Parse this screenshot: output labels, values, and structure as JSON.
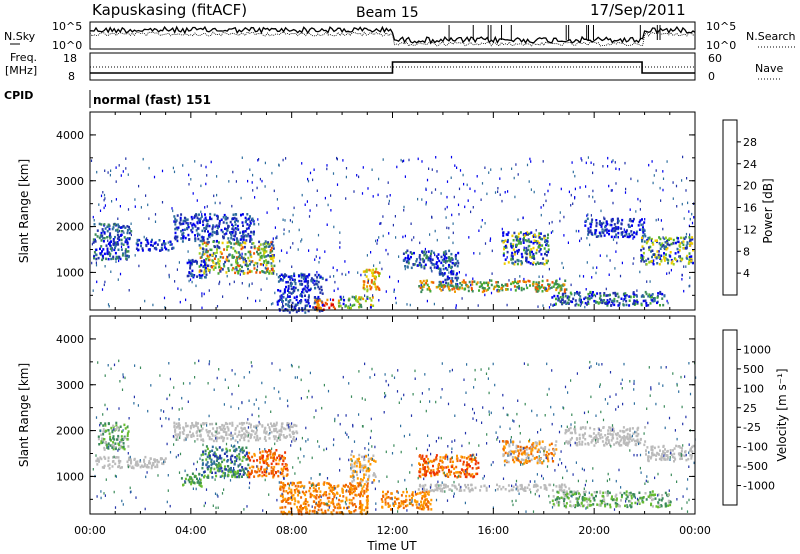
{
  "header": {
    "station": "Kapuskasing (fitACF)",
    "beam": "Beam 15",
    "date": "17/Sep/2011"
  },
  "noise_panel": {
    "left_label": "N.Sky",
    "right_label": "N.Search",
    "y_ticks_left": [
      "10^5",
      "10^0"
    ],
    "y_ticks_right": [
      "10^5",
      "10^0"
    ]
  },
  "freq_panel": {
    "left_label_1": "Freq.",
    "left_label_2": "[MHz]",
    "right_label": "Nave",
    "left_ticks": [
      "18",
      "8"
    ],
    "right_ticks": [
      "60",
      "0"
    ]
  },
  "cpid": {
    "label": "CPID",
    "value": "normal (fast) 151"
  },
  "x_axis": {
    "label": "Time UT",
    "ticks": [
      "00:00",
      "04:00",
      "08:00",
      "12:00",
      "16:00",
      "20:00",
      "00:00"
    ]
  },
  "chart_data": [
    {
      "type": "heatmap",
      "title": "Power",
      "ylabel": "Slant Range [km]",
      "yticks": [
        "1000",
        "2000",
        "3000",
        "4000"
      ],
      "colorbar_label": "Power [dB]",
      "colorbar_ticks": [
        "28",
        "24",
        "20",
        "16",
        "12",
        "8",
        "4"
      ],
      "colors": [
        "#0000ee",
        "#2233aa",
        "#2e6e9e",
        "#3a8a5a",
        "#44aa33",
        "#99cc22",
        "#eecc00",
        "#ee9900",
        "#ee5500",
        "#dd0000"
      ],
      "ylim": [
        180,
        4500
      ],
      "x_range_hours": [
        0,
        24
      ],
      "patches": [
        {
          "t0": 0.1,
          "t1": 1.6,
          "r0": 1300,
          "r1": 2100,
          "c": [
            0,
            1,
            2,
            3
          ]
        },
        {
          "t0": 1.8,
          "t1": 3.3,
          "r0": 1500,
          "r1": 1750,
          "c": [
            0,
            1,
            2
          ]
        },
        {
          "t0": 3.3,
          "t1": 6.5,
          "r0": 1700,
          "r1": 2300,
          "c": [
            0,
            1,
            2
          ]
        },
        {
          "t0": 4.3,
          "t1": 7.3,
          "r0": 1000,
          "r1": 1700,
          "c": [
            1,
            2,
            3,
            4,
            5,
            6,
            8
          ]
        },
        {
          "t0": 3.8,
          "t1": 4.6,
          "r0": 900,
          "r1": 1300,
          "c": [
            0,
            1,
            2
          ]
        },
        {
          "t0": 7.4,
          "t1": 9.2,
          "r0": 150,
          "r1": 1000,
          "c": [
            0,
            1,
            2
          ]
        },
        {
          "t0": 8.9,
          "t1": 9.7,
          "r0": 200,
          "r1": 450,
          "c": [
            7,
            8,
            9
          ]
        },
        {
          "t0": 9.8,
          "t1": 11.2,
          "r0": 250,
          "r1": 500,
          "c": [
            0,
            3,
            4,
            5,
            7
          ]
        },
        {
          "t0": 10.8,
          "t1": 11.5,
          "r0": 600,
          "r1": 1100,
          "c": [
            5,
            6,
            7,
            8
          ]
        },
        {
          "t0": 12.4,
          "t1": 14.6,
          "r0": 1100,
          "r1": 1500,
          "c": [
            0,
            1,
            2,
            3
          ]
        },
        {
          "t0": 13.8,
          "t1": 14.6,
          "r0": 700,
          "r1": 1100,
          "c": [
            0,
            1,
            2
          ]
        },
        {
          "t0": 16.3,
          "t1": 18.2,
          "r0": 1200,
          "r1": 1900,
          "c": [
            0,
            1,
            2,
            3,
            4,
            6
          ]
        },
        {
          "t0": 19.6,
          "t1": 22.0,
          "r0": 1800,
          "r1": 2200,
          "c": [
            0,
            1,
            2
          ]
        },
        {
          "t0": 21.8,
          "t1": 23.9,
          "r0": 1200,
          "r1": 1800,
          "c": [
            0,
            1,
            2,
            4,
            5,
            6
          ]
        },
        {
          "t0": 18.3,
          "t1": 22.8,
          "r0": 300,
          "r1": 600,
          "c": [
            0,
            1,
            2,
            3,
            4
          ]
        },
        {
          "t0": 13.0,
          "t1": 19.0,
          "r0": 600,
          "r1": 850,
          "c": [
            3,
            4,
            7,
            8
          ]
        }
      ]
    },
    {
      "type": "heatmap",
      "title": "Velocity",
      "ylabel": "Slant Range [km]",
      "yticks": [
        "1000",
        "2000",
        "3000",
        "4000"
      ],
      "colorbar_label": "Velocity [m s⁻¹]",
      "colorbar_ticks": [
        "1000",
        "500",
        "100",
        "25",
        "-25",
        "-100",
        "-500",
        "-1000"
      ],
      "colors": [
        "#2233aa",
        "#2e6e9e",
        "#3a8a5a",
        "#66bb33",
        "#bbbbbb",
        "#ff9900",
        "#ee6600",
        "#ee3300",
        "#dd0000"
      ],
      "ylim": [
        180,
        4500
      ],
      "x_range_hours": [
        0,
        24
      ],
      "patches": [
        {
          "t0": 0.2,
          "t1": 3.0,
          "r0": 1200,
          "r1": 1450,
          "c": [
            4
          ]
        },
        {
          "t0": 0.3,
          "t1": 1.5,
          "r0": 1600,
          "r1": 2200,
          "c": [
            2,
            3,
            4
          ]
        },
        {
          "t0": 3.3,
          "t1": 8.2,
          "r0": 1800,
          "r1": 2200,
          "c": [
            4
          ]
        },
        {
          "t0": 4.4,
          "t1": 6.3,
          "r0": 1000,
          "r1": 1700,
          "c": [
            0,
            1,
            2,
            3
          ]
        },
        {
          "t0": 6.2,
          "t1": 7.8,
          "r0": 1000,
          "r1": 1600,
          "c": [
            5,
            6,
            7
          ]
        },
        {
          "t0": 3.6,
          "t1": 4.4,
          "r0": 800,
          "r1": 1100,
          "c": [
            2,
            3
          ]
        },
        {
          "t0": 7.5,
          "t1": 11.0,
          "r0": 200,
          "r1": 900,
          "c": [
            5,
            6
          ]
        },
        {
          "t0": 10.3,
          "t1": 11.3,
          "r0": 900,
          "r1": 1500,
          "c": [
            4,
            5
          ]
        },
        {
          "t0": 13.0,
          "t1": 15.4,
          "r0": 1000,
          "r1": 1500,
          "c": [
            5,
            6,
            7
          ]
        },
        {
          "t0": 11.5,
          "t1": 13.5,
          "r0": 300,
          "r1": 700,
          "c": [
            5,
            6
          ]
        },
        {
          "t0": 16.3,
          "t1": 18.5,
          "r0": 1300,
          "r1": 1800,
          "c": [
            4,
            5,
            6
          ]
        },
        {
          "t0": 18.8,
          "t1": 22.0,
          "r0": 1700,
          "r1": 2100,
          "c": [
            4
          ]
        },
        {
          "t0": 22.0,
          "t1": 23.9,
          "r0": 1350,
          "r1": 1700,
          "c": [
            4
          ]
        },
        {
          "t0": 18.3,
          "t1": 23.0,
          "r0": 350,
          "r1": 700,
          "c": [
            2,
            3,
            4
          ]
        },
        {
          "t0": 13.0,
          "t1": 19.0,
          "r0": 700,
          "r1": 850,
          "c": [
            4
          ]
        }
      ]
    }
  ]
}
